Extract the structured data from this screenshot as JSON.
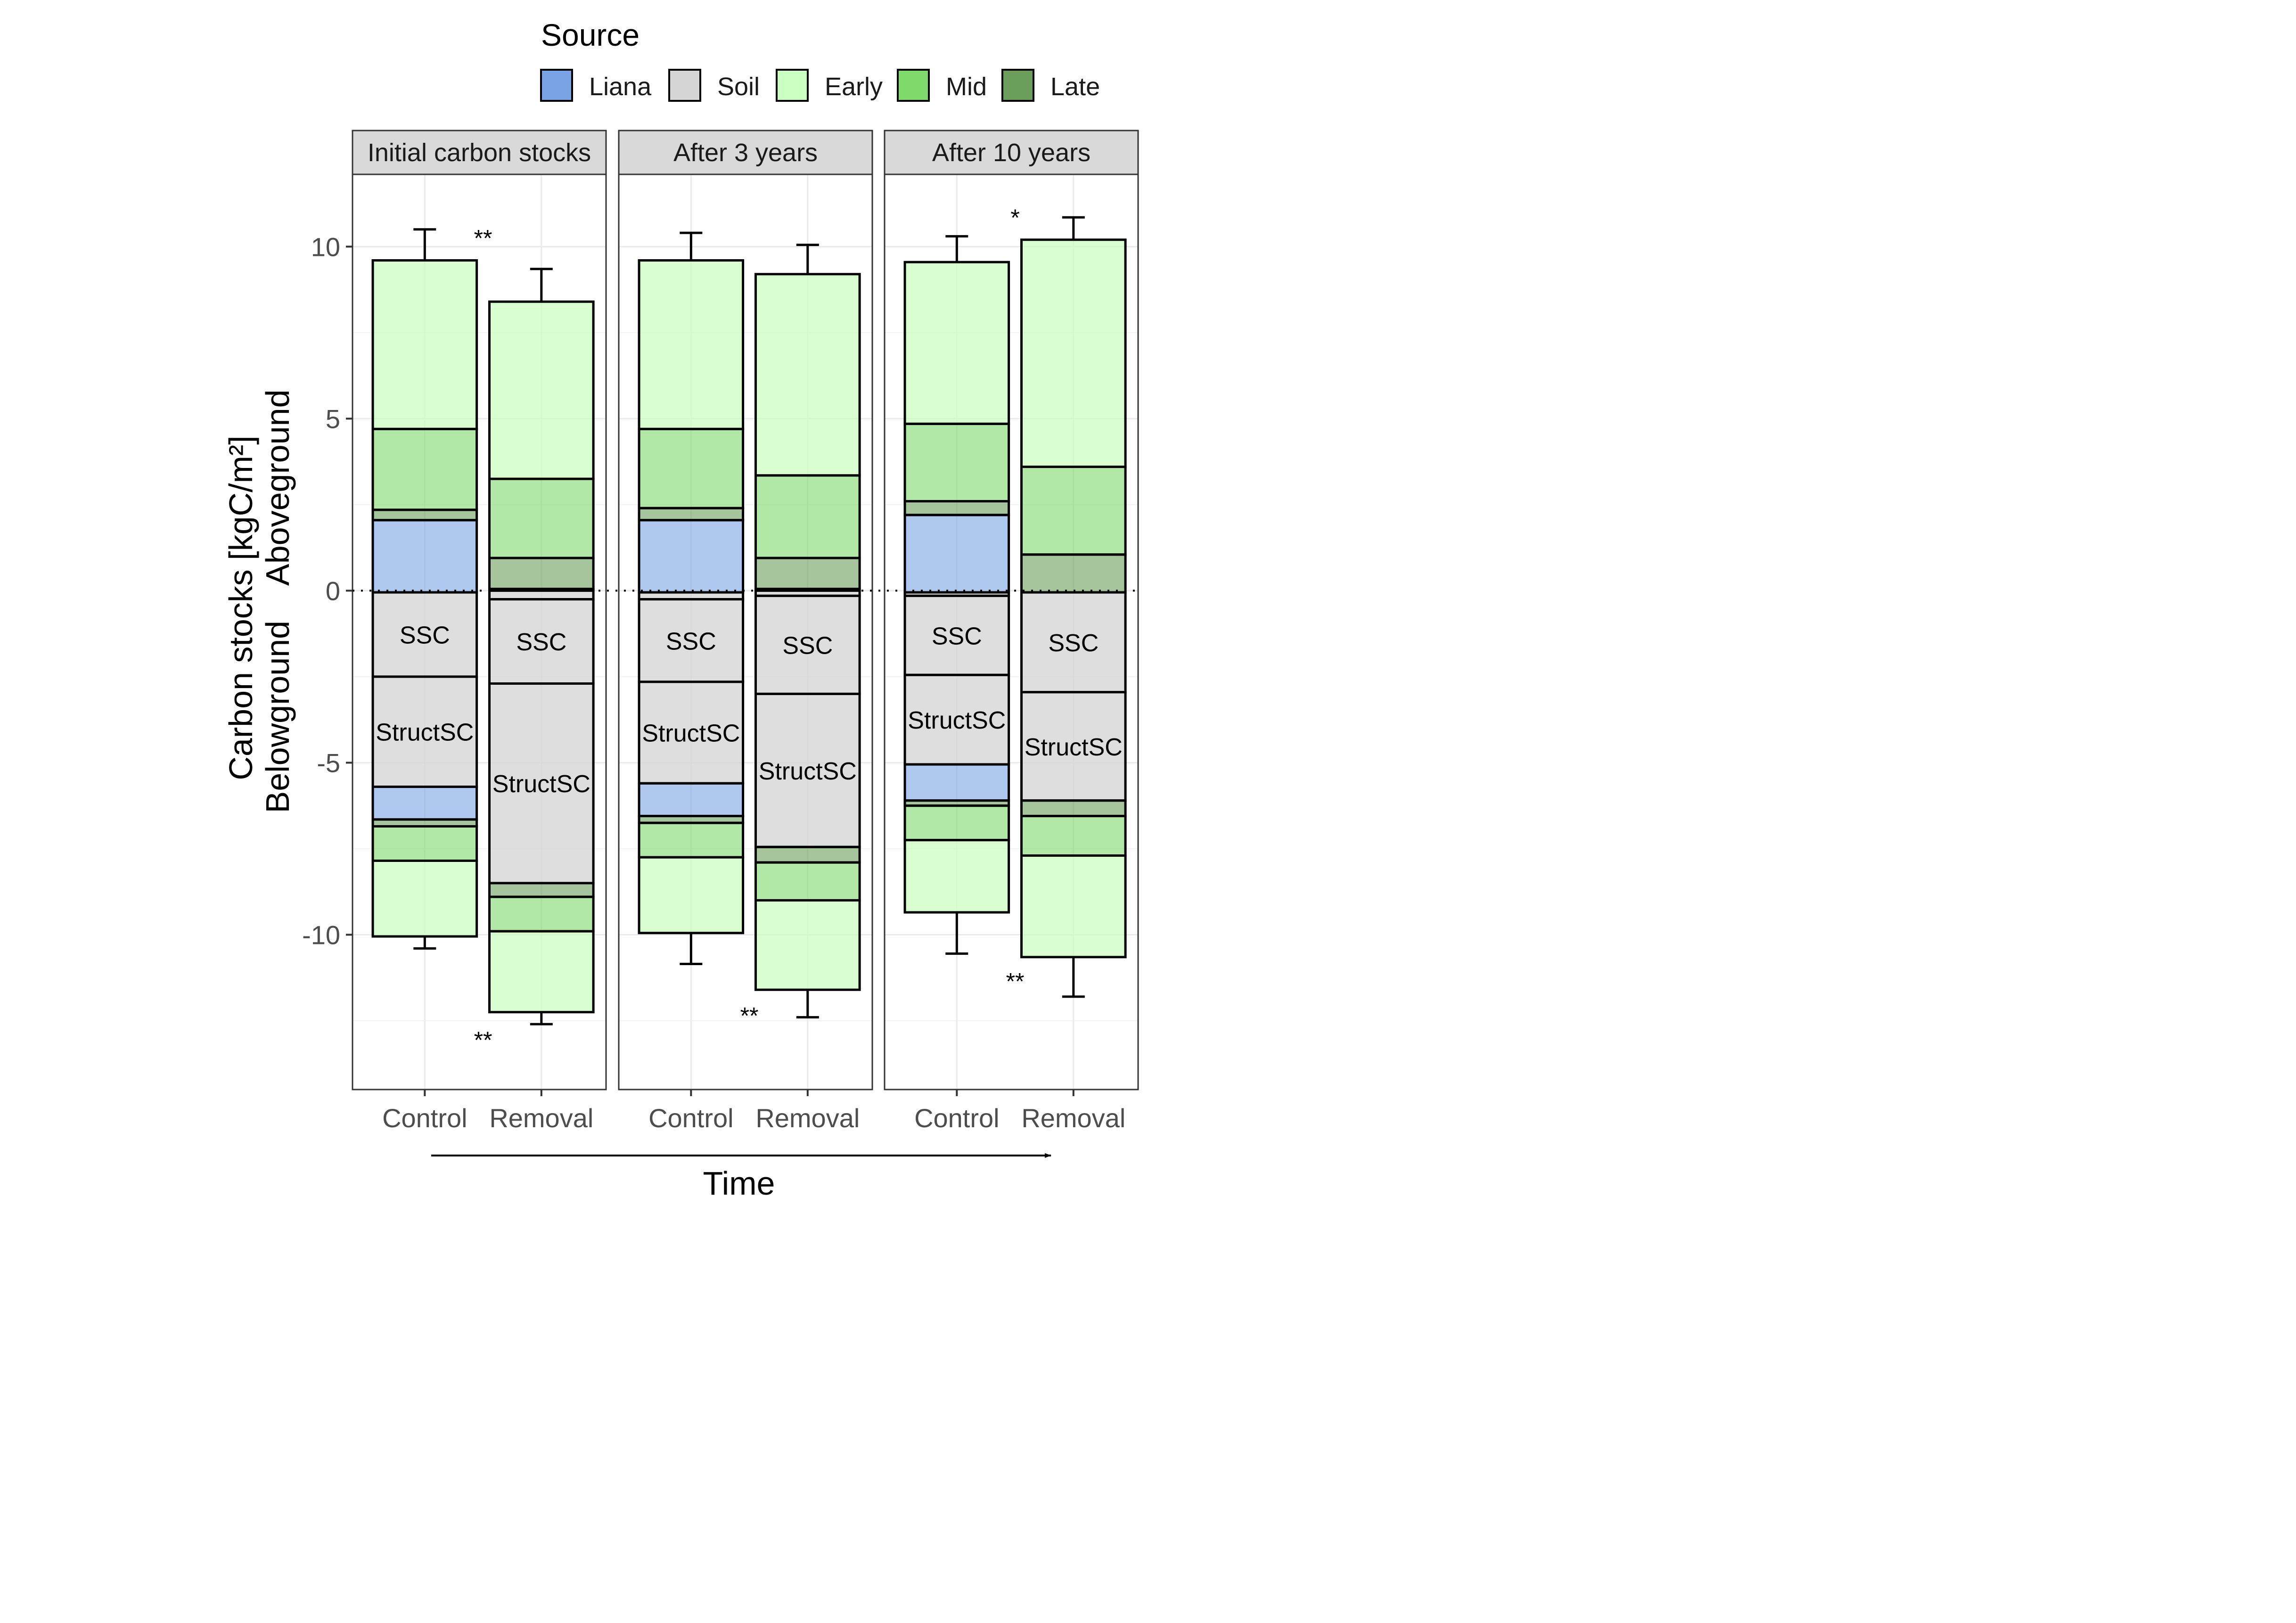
{
  "legend": {
    "title": "Source",
    "entries": [
      {
        "label": "Liana",
        "color": "#7AA3E5"
      },
      {
        "label": "Soil",
        "color": "#D6D6D6"
      },
      {
        "label": "Early",
        "color": "#CCFFC2"
      },
      {
        "label": "Mid",
        "color": "#7FD96B"
      },
      {
        "label": "Late",
        "color": "#6A9E5A"
      }
    ]
  },
  "time_label": "Time",
  "chart_data": {
    "type": "bar",
    "stacked": true,
    "ylabel_line1": "Carbon stocks [kgC/m²]",
    "ylabel_line2": "Belowground    Aboveground",
    "ylim": [
      -14.5,
      12.1
    ],
    "yticks": [
      10,
      5,
      0,
      -5,
      -10
    ],
    "ytick_labels": [
      "10",
      "5",
      "0",
      "-5",
      "-10"
    ],
    "grid": true,
    "legend_position": "top",
    "zero_line": "dotted",
    "categories": [
      "Control",
      "Removal"
    ],
    "panels": [
      {
        "title": "Initial carbon stocks",
        "bars": [
          {
            "label": "Control",
            "segments": [
              {
                "source": "Liana",
                "from": -0.05,
                "to": 2.05,
                "alpha": 0.6
              },
              {
                "source": "Late",
                "from": 2.05,
                "to": 2.35,
                "alpha": 0.6
              },
              {
                "source": "Mid",
                "from": 2.35,
                "to": 4.7,
                "alpha": 0.6
              },
              {
                "source": "Early",
                "from": 4.7,
                "to": 9.6,
                "alpha": 0.75
              },
              {
                "source": "Soil",
                "from": -0.05,
                "to": -2.5,
                "alpha": 0.8,
                "label": "SSC"
              },
              {
                "source": "Soil",
                "from": -2.5,
                "to": -5.7,
                "alpha": 0.8,
                "label": "StructSC"
              },
              {
                "source": "Liana",
                "from": -5.7,
                "to": -6.65,
                "alpha": 0.6
              },
              {
                "source": "Late",
                "from": -6.65,
                "to": -6.85,
                "alpha": 0.6
              },
              {
                "source": "Mid",
                "from": -6.85,
                "to": -7.85,
                "alpha": 0.6
              },
              {
                "source": "Early",
                "from": -7.85,
                "to": -10.05,
                "alpha": 0.75
              }
            ],
            "error_top": 10.5,
            "error_bottom": -10.4
          },
          {
            "label": "Removal",
            "segments": [
              {
                "source": "Liana",
                "from": 0,
                "to": 0.05,
                "alpha": 0.6
              },
              {
                "source": "Late",
                "from": 0.05,
                "to": 0.95,
                "alpha": 0.6
              },
              {
                "source": "Mid",
                "from": 0.95,
                "to": 3.25,
                "alpha": 0.6
              },
              {
                "source": "Early",
                "from": 3.25,
                "to": 8.4,
                "alpha": 0.75
              },
              {
                "source": "Soil",
                "from": 0,
                "to": -0.25,
                "alpha": 0.8
              },
              {
                "source": "Soil",
                "from": -0.25,
                "to": -2.7,
                "alpha": 0.8,
                "label": "SSC"
              },
              {
                "source": "Soil",
                "from": -2.7,
                "to": -8.5,
                "alpha": 0.8,
                "label": "StructSC"
              },
              {
                "source": "Late",
                "from": -8.5,
                "to": -8.9,
                "alpha": 0.6
              },
              {
                "source": "Mid",
                "from": -8.9,
                "to": -9.9,
                "alpha": 0.6
              },
              {
                "source": "Early",
                "from": -9.9,
                "to": -12.25,
                "alpha": 0.75
              }
            ],
            "error_top": 9.35,
            "error_bottom": -12.6
          }
        ],
        "annotations": [
          {
            "text": "**",
            "x": 0.5,
            "y": 10.2
          },
          {
            "text": "**",
            "x": 0.5,
            "y": -13.1
          }
        ]
      },
      {
        "title": "After 3 years",
        "bars": [
          {
            "label": "Control",
            "segments": [
              {
                "source": "Liana",
                "from": -0.05,
                "to": 2.05,
                "alpha": 0.6
              },
              {
                "source": "Late",
                "from": 2.05,
                "to": 2.4,
                "alpha": 0.6
              },
              {
                "source": "Mid",
                "from": 2.4,
                "to": 4.7,
                "alpha": 0.6
              },
              {
                "source": "Early",
                "from": 4.7,
                "to": 9.6,
                "alpha": 0.75
              },
              {
                "source": "Soil",
                "from": -0.05,
                "to": -0.25,
                "alpha": 0.8
              },
              {
                "source": "Soil",
                "from": -0.25,
                "to": -2.65,
                "alpha": 0.8,
                "label": "SSC"
              },
              {
                "source": "Soil",
                "from": -2.65,
                "to": -5.6,
                "alpha": 0.8,
                "label": "StructSC"
              },
              {
                "source": "Liana",
                "from": -5.6,
                "to": -6.55,
                "alpha": 0.6
              },
              {
                "source": "Late",
                "from": -6.55,
                "to": -6.75,
                "alpha": 0.6
              },
              {
                "source": "Mid",
                "from": -6.75,
                "to": -7.75,
                "alpha": 0.6
              },
              {
                "source": "Early",
                "from": -7.75,
                "to": -9.95,
                "alpha": 0.75
              }
            ],
            "error_top": 10.4,
            "error_bottom": -10.85
          },
          {
            "label": "Removal",
            "segments": [
              {
                "source": "Liana",
                "from": 0,
                "to": 0.05,
                "alpha": 0.6
              },
              {
                "source": "Late",
                "from": 0.05,
                "to": 0.95,
                "alpha": 0.6
              },
              {
                "source": "Mid",
                "from": 0.95,
                "to": 3.35,
                "alpha": 0.6
              },
              {
                "source": "Early",
                "from": 3.35,
                "to": 9.2,
                "alpha": 0.75
              },
              {
                "source": "Soil",
                "from": 0,
                "to": -0.15,
                "alpha": 0.8
              },
              {
                "source": "Soil",
                "from": -0.15,
                "to": -3.0,
                "alpha": 0.8,
                "label": "SSC"
              },
              {
                "source": "Soil",
                "from": -3.0,
                "to": -7.45,
                "alpha": 0.8,
                "label": "StructSC"
              },
              {
                "source": "Late",
                "from": -7.45,
                "to": -7.9,
                "alpha": 0.6
              },
              {
                "source": "Mid",
                "from": -7.9,
                "to": -9.0,
                "alpha": 0.6
              },
              {
                "source": "Early",
                "from": -9.0,
                "to": -11.6,
                "alpha": 0.75
              }
            ],
            "error_top": 10.05,
            "error_bottom": -12.4
          }
        ],
        "annotations": [
          {
            "text": "**",
            "x": 0.5,
            "y": -12.4
          }
        ]
      },
      {
        "title": "After 10 years",
        "bars": [
          {
            "label": "Control",
            "segments": [
              {
                "source": "Liana",
                "from": -0.05,
                "to": 2.2,
                "alpha": 0.6
              },
              {
                "source": "Late",
                "from": 2.2,
                "to": 2.6,
                "alpha": 0.6
              },
              {
                "source": "Mid",
                "from": 2.6,
                "to": 4.85,
                "alpha": 0.6
              },
              {
                "source": "Early",
                "from": 4.85,
                "to": 9.55,
                "alpha": 0.75
              },
              {
                "source": "Soil",
                "from": -0.05,
                "to": -0.15,
                "alpha": 0.8
              },
              {
                "source": "Soil",
                "from": -0.15,
                "to": -2.45,
                "alpha": 0.8,
                "label": "SSC"
              },
              {
                "source": "Soil",
                "from": -2.45,
                "to": -5.05,
                "alpha": 0.8,
                "label": "StructSC"
              },
              {
                "source": "Liana",
                "from": -5.05,
                "to": -6.1,
                "alpha": 0.6
              },
              {
                "source": "Late",
                "from": -6.1,
                "to": -6.25,
                "alpha": 0.6
              },
              {
                "source": "Mid",
                "from": -6.25,
                "to": -7.25,
                "alpha": 0.6
              },
              {
                "source": "Early",
                "from": -7.25,
                "to": -9.35,
                "alpha": 0.75
              }
            ],
            "error_top": 10.3,
            "error_bottom": -10.55
          },
          {
            "label": "Removal",
            "segments": [
              {
                "source": "Late",
                "from": -0.05,
                "to": 1.05,
                "alpha": 0.6
              },
              {
                "source": "Mid",
                "from": 1.05,
                "to": 3.6,
                "alpha": 0.6
              },
              {
                "source": "Early",
                "from": 3.6,
                "to": 10.2,
                "alpha": 0.75
              },
              {
                "source": "Soil",
                "from": -0.05,
                "to": -2.95,
                "alpha": 0.8,
                "label": "SSC"
              },
              {
                "source": "Soil",
                "from": -2.95,
                "to": -6.1,
                "alpha": 0.8,
                "label": "StructSC"
              },
              {
                "source": "Late",
                "from": -6.1,
                "to": -6.55,
                "alpha": 0.6
              },
              {
                "source": "Mid",
                "from": -6.55,
                "to": -7.7,
                "alpha": 0.6
              },
              {
                "source": "Early",
                "from": -7.7,
                "to": -10.65,
                "alpha": 0.75
              }
            ],
            "error_top": 10.85,
            "error_bottom": -11.8
          }
        ],
        "annotations": [
          {
            "text": "*",
            "x": 0.5,
            "y": 10.8
          },
          {
            "text": "**",
            "x": 0.5,
            "y": -11.4
          }
        ]
      }
    ]
  }
}
